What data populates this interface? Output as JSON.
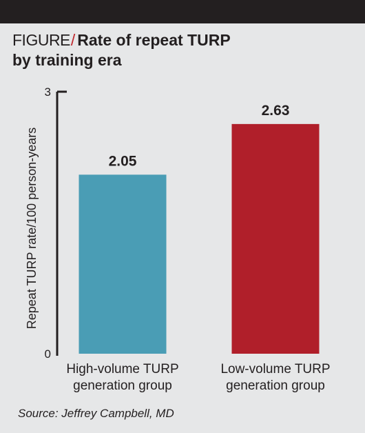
{
  "header": {
    "figure_label": "FIGURE",
    "slash": "/",
    "title_line1": "Rate of repeat TURP",
    "title_line2": "by training era"
  },
  "colors": {
    "high_volume_bar": "#4a9db5",
    "low_volume_bar": "#b01f2a",
    "axis": "#231f20",
    "accent": "#c0272d",
    "background": "#e6e7e8",
    "top_bar": "#231f20"
  },
  "chart_data": {
    "type": "bar",
    "categories": [
      [
        "High-volume TURP",
        "generation group"
      ],
      [
        "Low-volume TURP",
        "generation group"
      ]
    ],
    "values": [
      2.05,
      2.63
    ],
    "value_labels": [
      "2.05",
      "2.63"
    ],
    "ylabel": "Repeat TURP rate/100 person-years",
    "ylim": [
      0,
      3
    ],
    "yticks": [
      "0",
      "3"
    ],
    "grid": false,
    "legend": "none"
  },
  "source": "Source: Jeffrey Campbell, MD"
}
